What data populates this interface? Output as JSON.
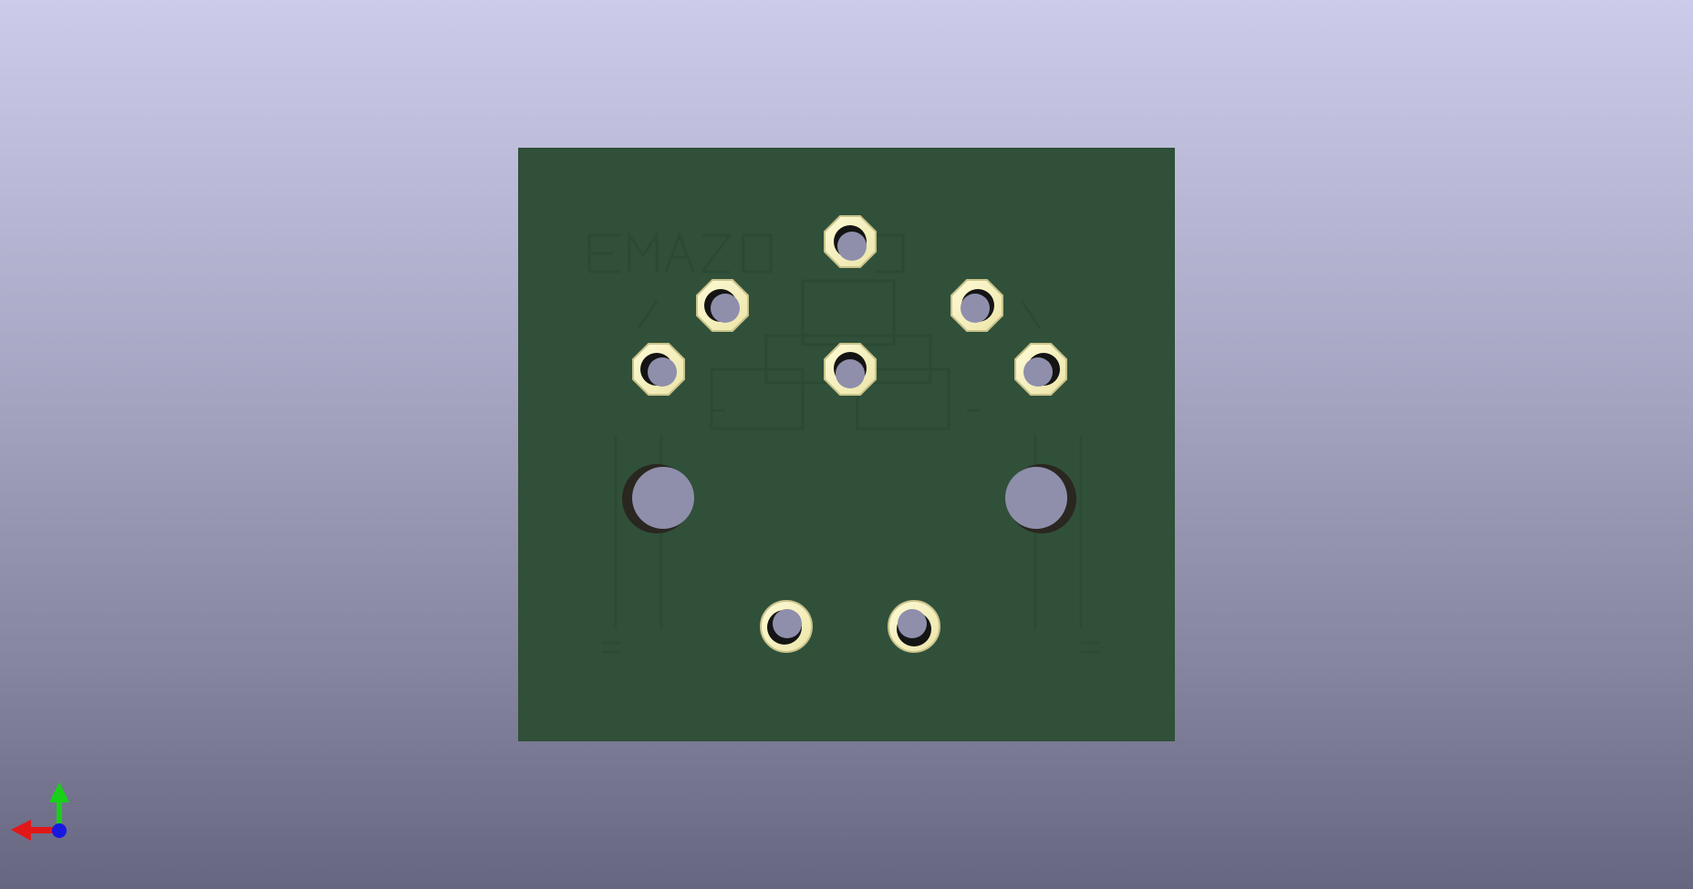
{
  "viewer": {
    "view": "bottom",
    "background_top": "#ccccea",
    "background_bottom": "#666680"
  },
  "board": {
    "color": "#30503a",
    "silkscreen_color": "#2b4a34",
    "pad_color": "#f8f4c4",
    "pad_outline": "#c9c38a",
    "hole_color": "#8f8fac",
    "hole_shadow": "#141414",
    "pads": [
      {
        "id": "pad-top-center",
        "shape": "octagon"
      },
      {
        "id": "pad-upper-left",
        "shape": "octagon"
      },
      {
        "id": "pad-upper-right",
        "shape": "octagon"
      },
      {
        "id": "pad-middle-left",
        "shape": "octagon"
      },
      {
        "id": "pad-center",
        "shape": "octagon"
      },
      {
        "id": "pad-middle-right",
        "shape": "octagon"
      },
      {
        "id": "pad-bottom-left",
        "shape": "circle"
      },
      {
        "id": "pad-bottom-right",
        "shape": "circle"
      }
    ],
    "mounting_holes": [
      {
        "id": "mount-left"
      },
      {
        "id": "mount-right"
      }
    ]
  },
  "axes": {
    "x_color": "#e01818",
    "y_color": "#18d018",
    "z_color": "#1818e0",
    "icon": "axis-triad-icon"
  }
}
